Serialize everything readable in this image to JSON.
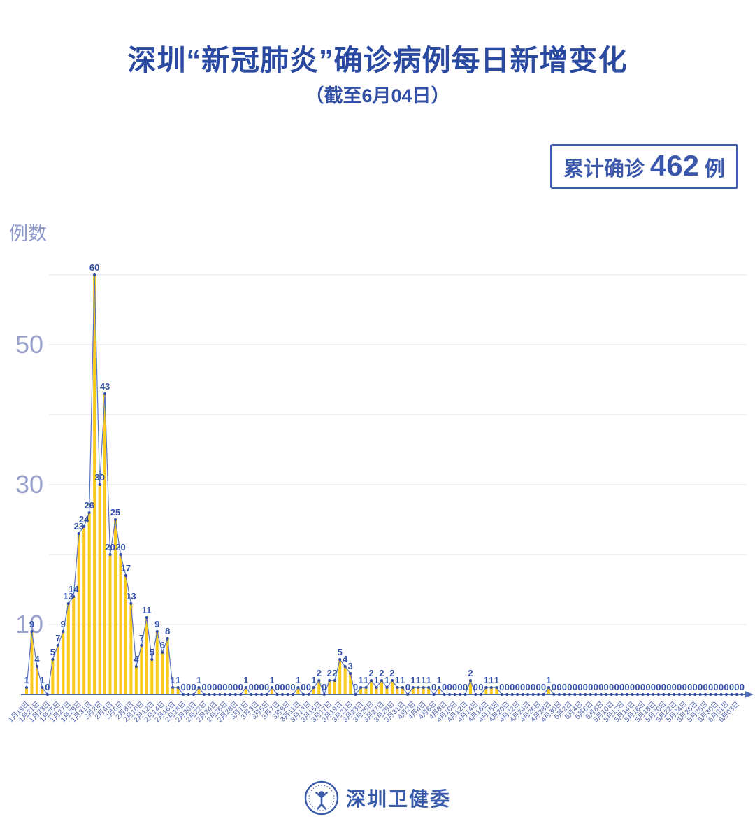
{
  "header": {
    "title": "深圳“新冠肺炎”确诊病例每日新增变化",
    "subtitle": "（截至6月04日）"
  },
  "badge": {
    "prefix": "累计确诊",
    "value": "462",
    "suffix": "例"
  },
  "footer": {
    "org": "深圳卫健委"
  },
  "colors": {
    "title_blue": "#2a49a0",
    "label_blue": "#3350a7",
    "line_blue": "#5a74bd",
    "dot_blue": "#2e4da6",
    "bar_yellow": "#fbca1c",
    "grid_gray": "#e6e6ee",
    "ytick": "#99a2cd",
    "date_blue": "#5566b2",
    "axis_blue": "#4f6cb8"
  },
  "chart_data": {
    "type": "bar",
    "title": "深圳“新冠肺炎”确诊病例每日新增变化（截至6月04日）",
    "xlabel": "",
    "ylabel": "例数",
    "ylim": [
      0,
      62
    ],
    "gridlines": [
      10,
      20,
      30,
      40,
      50,
      60
    ],
    "yticks_labeled": [
      10,
      30,
      50
    ],
    "x_label_every": 2,
    "x": [
      "1月19日",
      "1月20日",
      "1月21日",
      "1月22日",
      "1月23日",
      "1月24日",
      "1月25日",
      "1月26日",
      "1月27日",
      "1月28日",
      "1月29日",
      "1月30日",
      "1月31日",
      "2月1日",
      "2月2日",
      "2月3日",
      "2月4日",
      "2月5日",
      "2月6日",
      "2月7日",
      "2月8日",
      "2月9日",
      "2月10日",
      "2月11日",
      "2月12日",
      "2月13日",
      "2月14日",
      "2月15日",
      "2月16日",
      "2月17日",
      "2月18日",
      "2月19日",
      "2月20日",
      "2月21日",
      "2月22日",
      "2月23日",
      "2月24日",
      "2月25日",
      "2月26日",
      "2月27日",
      "2月28日",
      "2月29日",
      "3月1日",
      "3月2日",
      "3月3日",
      "3月4日",
      "3月5日",
      "3月6日",
      "3月7日",
      "3月8日",
      "3月9日",
      "3月10日",
      "3月11日",
      "3月12日",
      "3月13日",
      "3月14日",
      "3月15日",
      "3月16日",
      "3月17日",
      "3月18日",
      "3月19日",
      "3月20日",
      "3月21日",
      "3月22日",
      "3月23日",
      "3月24日",
      "3月25日",
      "3月26日",
      "3月27日",
      "3月28日",
      "3月29日",
      "3月30日",
      "3月31日",
      "4月1日",
      "4月2日",
      "4月3日",
      "4月4日",
      "4月5日",
      "4月6日",
      "4月7日",
      "4月8日",
      "4月9日",
      "4月10日",
      "4月11日",
      "4月12日",
      "4月13日",
      "4月14日",
      "4月15日",
      "4月16日",
      "4月17日",
      "4月18日",
      "4月19日",
      "4月20日",
      "4月21日",
      "4月22日",
      "4月23日",
      "4月24日",
      "4月25日",
      "4月26日",
      "4月27日",
      "4月28日",
      "4月29日",
      "4月30日",
      "5月1日",
      "5月2日",
      "5月3日",
      "5月4日",
      "5月5日",
      "5月6日",
      "5月7日",
      "5月8日",
      "5月9日",
      "5月10日",
      "5月11日",
      "5月12日",
      "5月13日",
      "5月14日",
      "5月15日",
      "5月16日",
      "5月17日",
      "5月18日",
      "5月19日",
      "5月20日",
      "5月21日",
      "5月22日",
      "5月23日",
      "5月24日",
      "5月25日",
      "5月26日",
      "5月27日",
      "5月28日",
      "5月29日",
      "5月30日",
      "5月31日",
      "6月01日",
      "6月02日",
      "6月03日",
      "6月04日"
    ],
    "values": [
      1,
      9,
      4,
      1,
      0,
      5,
      7,
      9,
      13,
      14,
      23,
      24,
      26,
      60,
      30,
      43,
      20,
      25,
      20,
      17,
      13,
      4,
      7,
      11,
      5,
      9,
      6,
      8,
      1,
      1,
      0,
      0,
      0,
      1,
      0,
      0,
      0,
      0,
      0,
      0,
      0,
      0,
      1,
      0,
      0,
      0,
      0,
      1,
      0,
      0,
      0,
      0,
      1,
      0,
      0,
      1,
      2,
      0,
      2,
      2,
      5,
      4,
      3,
      0,
      1,
      1,
      2,
      1,
      2,
      1,
      2,
      1,
      1,
      0,
      1,
      1,
      1,
      1,
      0,
      1,
      0,
      0,
      0,
      0,
      0,
      2,
      0,
      0,
      1,
      1,
      1,
      0,
      0,
      0,
      0,
      0,
      0,
      0,
      0,
      0,
      1,
      0,
      0,
      0,
      0,
      0,
      0,
      0,
      0,
      0,
      0,
      0,
      0,
      0,
      0,
      0,
      0,
      0,
      0,
      0,
      0,
      0,
      0,
      0,
      0,
      0,
      0,
      0,
      0,
      0,
      0,
      0,
      0,
      0,
      0,
      0,
      0,
      0
    ]
  }
}
